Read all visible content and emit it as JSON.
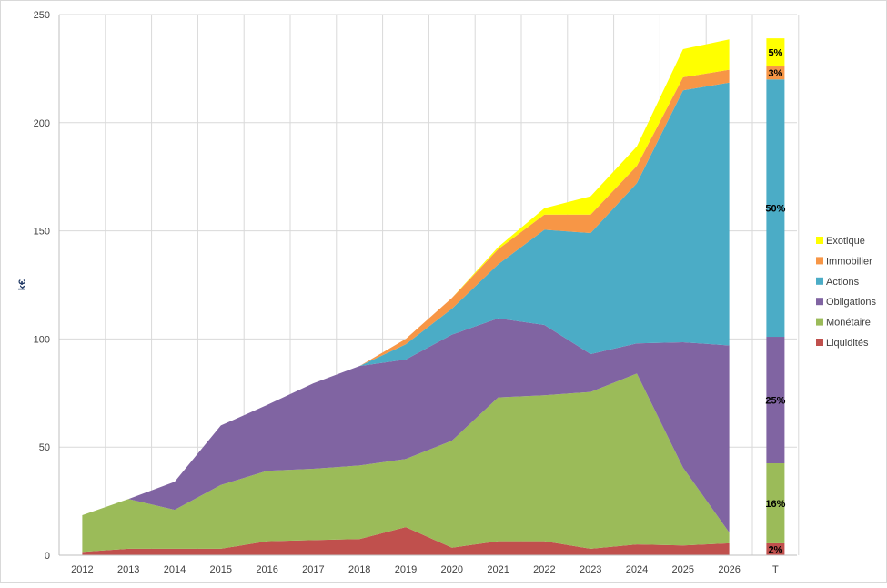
{
  "chart_data": {
    "type": "area",
    "stacked": true,
    "ylabel": "k€",
    "ylim": [
      0,
      250
    ],
    "yticks": [
      0,
      50,
      100,
      150,
      200,
      250
    ],
    "grid": true,
    "legend_position": "right",
    "categories": [
      "2012",
      "2013",
      "2014",
      "2015",
      "2016",
      "2017",
      "2018",
      "2019",
      "2020",
      "2021",
      "2022",
      "2023",
      "2024",
      "2025",
      "2026"
    ],
    "series": [
      {
        "name": "Liquidités",
        "color": "#c0504d",
        "values": [
          1.5,
          3,
          3,
          3,
          6.5,
          7,
          7.5,
          13,
          3.5,
          6.5,
          6.5,
          3,
          5,
          4.5,
          5.5
        ]
      },
      {
        "name": "Monétaire",
        "color": "#9bbb59",
        "values": [
          17,
          23,
          18,
          29.5,
          32.5,
          33,
          34,
          31.5,
          49.5,
          66.5,
          67.5,
          72.5,
          79,
          36,
          5
        ]
      },
      {
        "name": "Obligations",
        "color": "#8064a2",
        "values": [
          0,
          0,
          13,
          27.5,
          30.5,
          39.5,
          46,
          46,
          49,
          36.5,
          32.5,
          17.5,
          14,
          58,
          86.5
        ]
      },
      {
        "name": "Actions",
        "color": "#4bacc6",
        "values": [
          0,
          0,
          0,
          0,
          0,
          0,
          0,
          7,
          12,
          25,
          44,
          56,
          74,
          116.5,
          121.5
        ]
      },
      {
        "name": "Immobilier",
        "color": "#f79646",
        "values": [
          0,
          0,
          0,
          0,
          0,
          0,
          0,
          2.5,
          5,
          7,
          7,
          8.5,
          8,
          6,
          6
        ]
      },
      {
        "name": "Exotique",
        "color": "#ffff00",
        "values": [
          0,
          0,
          0,
          0,
          0,
          0,
          0,
          0,
          0,
          1,
          3,
          8.5,
          9,
          13,
          14
        ]
      }
    ],
    "total_bar": {
      "category": "T",
      "segments": [
        {
          "series": "Liquidités",
          "value": 5.5,
          "label": "2%"
        },
        {
          "series": "Monétaire",
          "value": 37,
          "label": "16%"
        },
        {
          "series": "Obligations",
          "value": 58.5,
          "label": "25%"
        },
        {
          "series": "Actions",
          "value": 119,
          "label": "50%"
        },
        {
          "series": "Immobilier",
          "value": 6,
          "label": "3%"
        },
        {
          "series": "Exotique",
          "value": 13,
          "label": "5%"
        }
      ]
    },
    "legend_order": [
      "Exotique",
      "Immobilier",
      "Actions",
      "Obligations",
      "Monétaire",
      "Liquidités"
    ]
  }
}
